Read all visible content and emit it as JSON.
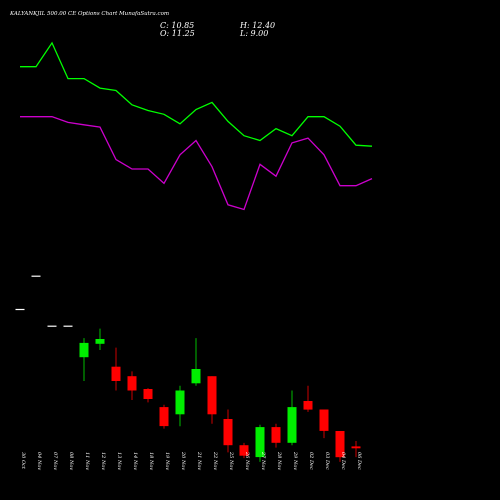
{
  "chart_data": {
    "type": "candlestick",
    "title": "KALYANKJIL 500.00 CE Options Chart MunafaSutra.com",
    "ohlc_readout": {
      "c_label": "C: 10.85",
      "h_label": "H: 12.40",
      "o_label": "O: 11.25",
      "l_label": "L: 9.00"
    },
    "ylim": [
      0,
      105
    ],
    "candles": [
      {
        "date": "30 Oct",
        "open": 40.0,
        "high": 40.0,
        "low": 40.0,
        "close": 40.0
      },
      {
        "date": "04 Nov",
        "open": 47.0,
        "high": 47.0,
        "low": 47.0,
        "close": 47.0
      },
      {
        "date": "07 Nov",
        "open": 36.5,
        "high": 36.5,
        "low": 36.5,
        "close": 36.5
      },
      {
        "date": "08 Nov",
        "open": 36.5,
        "high": 36.5,
        "low": 36.5,
        "close": 36.5
      },
      {
        "date": "11 Nov",
        "open": 30.0,
        "high": 34.0,
        "low": 25.0,
        "close": 33.0
      },
      {
        "date": "12 Nov",
        "open": 32.8,
        "high": 36.0,
        "low": 31.5,
        "close": 33.8
      },
      {
        "date": "13 Nov",
        "open": 28.0,
        "high": 32.0,
        "low": 23.0,
        "close": 25.0
      },
      {
        "date": "14 Nov",
        "open": 26.0,
        "high": 27.0,
        "low": 21.0,
        "close": 23.0
      },
      {
        "date": "18 Nov",
        "open": 23.3,
        "high": 23.5,
        "low": 20.5,
        "close": 21.2
      },
      {
        "date": "19 Nov",
        "open": 19.5,
        "high": 20.0,
        "low": 15.0,
        "close": 15.5
      },
      {
        "date": "20 Nov",
        "open": 18.0,
        "high": 24.0,
        "low": 15.5,
        "close": 23.0
      },
      {
        "date": "21 Nov",
        "open": 24.5,
        "high": 34.0,
        "low": 24.0,
        "close": 27.5
      },
      {
        "date": "22 Nov",
        "open": 26.0,
        "high": 26.0,
        "low": 16.0,
        "close": 18.0
      },
      {
        "date": "25 Nov",
        "open": 17.0,
        "high": 19.0,
        "low": 10.0,
        "close": 11.5
      },
      {
        "date": "26 Nov",
        "open": 11.5,
        "high": 12.0,
        "low": 8.8,
        "close": 9.3
      },
      {
        "date": "27 Nov",
        "open": 9.0,
        "high": 15.8,
        "low": 8.0,
        "close": 15.3
      },
      {
        "date": "28 Nov",
        "open": 15.3,
        "high": 16.0,
        "low": 11.0,
        "close": 12.0
      },
      {
        "date": "29 Nov",
        "open": 12.0,
        "high": 23.0,
        "low": 11.5,
        "close": 19.5
      },
      {
        "date": "02 Dec",
        "open": 20.8,
        "high": 24.0,
        "low": 18.5,
        "close": 19.0
      },
      {
        "date": "03 Dec",
        "open": 19.0,
        "high": 19.0,
        "low": 13.0,
        "close": 14.5
      },
      {
        "date": "04 Dec",
        "open": 14.5,
        "high": 14.5,
        "low": 8.0,
        "close": 9.0
      },
      {
        "date": "06 Dec",
        "open": 11.25,
        "high": 12.4,
        "low": 9.0,
        "close": 10.85
      }
    ],
    "upper_line": {
      "color": "#00ff00",
      "values": [
        91,
        91,
        96,
        88.5,
        88.5,
        86.5,
        86,
        83,
        81.8,
        81,
        79,
        82,
        83.5,
        79.5,
        76.5,
        75.5,
        78,
        76.5,
        80.5,
        80.5,
        78.5,
        74.5,
        74.3
      ]
    },
    "lower_line": {
      "color": "#cc00cc",
      "values": [
        80.5,
        80.5,
        80.5,
        79.3,
        78.8,
        78.3,
        71.5,
        69.5,
        69.5,
        66.5,
        72.5,
        75.5,
        70,
        62,
        61,
        70.5,
        68,
        75,
        76,
        72.5,
        66,
        66,
        67.5
      ]
    },
    "colors": {
      "up": "#00ee00",
      "down": "#ff0000",
      "background": "#000000",
      "text": "#ffffff"
    }
  }
}
